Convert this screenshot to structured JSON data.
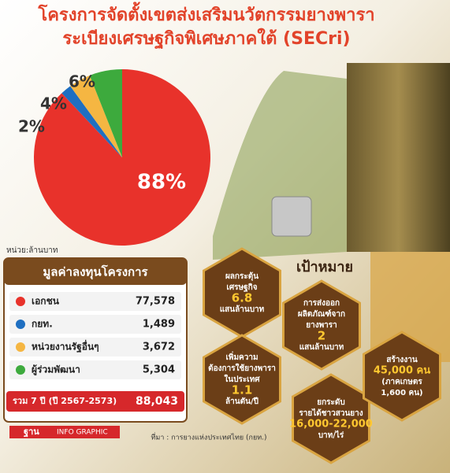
{
  "chart_data": {
    "type": "pie",
    "title": [
      "โครงการจัดตั้งเขตส่งเสริมนวัตกรรมยางพารา",
      "ระเบียงเศรษฐกิจพิเศษภาคใต้ (SECri)"
    ],
    "values": [
      88,
      2,
      4,
      6
    ],
    "value_labels": [
      "88%",
      "2%",
      "4%",
      "6%"
    ],
    "colors": [
      "#e8322b",
      "#1f6fc1",
      "#f5b642",
      "#3daa3d"
    ]
  },
  "unit": "หน่วย:ล้านบาท",
  "table": {
    "title": "มูลค่าลงทุนโครงการ",
    "rows": [
      [
        "เอกชน",
        "77,578"
      ],
      [
        "กยท.",
        "1,489"
      ],
      [
        "หน่วยงานรัฐอื่นๆ",
        "3,672"
      ],
      [
        "ผู้ร่วมพัฒนา",
        "5,304"
      ]
    ],
    "total": [
      "รวม 7 ปี (ปี 2567-2573)",
      "88,043"
    ]
  },
  "goals": {
    "title": "เป้าหมาย",
    "items": [
      {
        "text": [
          "ผลกระตุ้น",
          "เศรษฐกิจ"
        ],
        "value": "6.8",
        "unit": [
          "แสนล้านบาท"
        ]
      },
      {
        "text": [
          "การส่งออก",
          "ผลิตภัณฑ์จาก",
          "ยางพารา"
        ],
        "value": "2",
        "unit": [
          "แสนล้านบาท"
        ]
      },
      {
        "text": [
          "เพิ่มความ",
          "ต้องการใช้ยางพารา",
          "ในประเทศ"
        ],
        "value": "1.1",
        "unit": [
          "ล้านตัน/ปี"
        ]
      },
      {
        "text": [
          "ยกระดับ",
          "รายได้ชาวสวนยาง"
        ],
        "value": "16,000-22,000",
        "unit": [
          "บาท/ไร่"
        ]
      },
      {
        "text": [
          "สร้างงาน"
        ],
        "value": "45,000 คน",
        "unit": [
          "(ภาคเกษตร",
          "1,600 คน)"
        ]
      }
    ]
  },
  "source": "ที่มา : การยางแห่งประเทศไทย (กยท.)",
  "brand": [
    "ฐาน",
    "INFO GRAPHIC"
  ]
}
